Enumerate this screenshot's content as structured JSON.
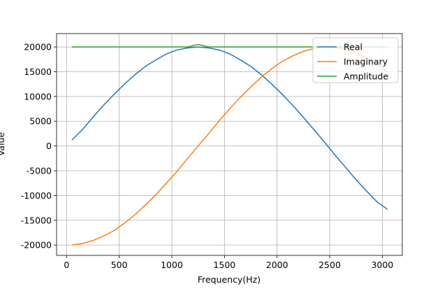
{
  "chart_data": {
    "type": "line",
    "xlabel": "Frequency(Hz)",
    "ylabel": "Value",
    "x": [
      50,
      150,
      250,
      350,
      450,
      550,
      650,
      750,
      850,
      950,
      1050,
      1150,
      1250,
      1350,
      1450,
      1550,
      1650,
      1750,
      1850,
      1950,
      2050,
      2150,
      2250,
      2350,
      2450,
      2550,
      2650,
      2750,
      2850,
      2950,
      3050
    ],
    "series": [
      {
        "name": "Real",
        "color": "#1f77b4",
        "values": [
          1200,
          3300,
          5800,
          8200,
          10400,
          12500,
          14400,
          16100,
          17400,
          18600,
          19400,
          19800,
          20000,
          19800,
          19400,
          18600,
          17400,
          16100,
          14400,
          12500,
          10400,
          8200,
          5800,
          3300,
          800,
          -1800,
          -4300,
          -6800,
          -9100,
          -11300,
          -12800
        ]
      },
      {
        "name": "Imaginary",
        "color": "#ff7f0e",
        "values": [
          -20000,
          -19700,
          -19100,
          -18200,
          -17100,
          -15600,
          -13900,
          -11900,
          -9800,
          -7500,
          -5100,
          -2500,
          0,
          2500,
          5100,
          7500,
          9800,
          11900,
          13900,
          15600,
          17100,
          18200,
          19100,
          19700,
          20000,
          19900,
          19500,
          18800,
          17800,
          16500,
          14900
        ]
      },
      {
        "name": "Amplitude",
        "color": "#2ca02c",
        "values": [
          20000,
          20000,
          20000,
          20000,
          20000,
          20000,
          20000,
          20000,
          20000,
          20000,
          20000,
          20000,
          20500,
          20000,
          20000,
          20000,
          20000,
          20000,
          20000,
          20000,
          20000,
          20000,
          20000,
          20000,
          20000,
          20000,
          20000,
          20000,
          20000,
          20000,
          20000
        ]
      }
    ],
    "xlim": [
      -95,
      3190
    ],
    "xticks": [
      0,
      500,
      1000,
      1500,
      2000,
      2500,
      3000
    ],
    "ylim": [
      -22100,
      22700
    ],
    "yticks": [
      -20000,
      -15000,
      -10000,
      -5000,
      0,
      5000,
      10000,
      15000,
      20000
    ],
    "grid": true,
    "legend": "upper right"
  }
}
